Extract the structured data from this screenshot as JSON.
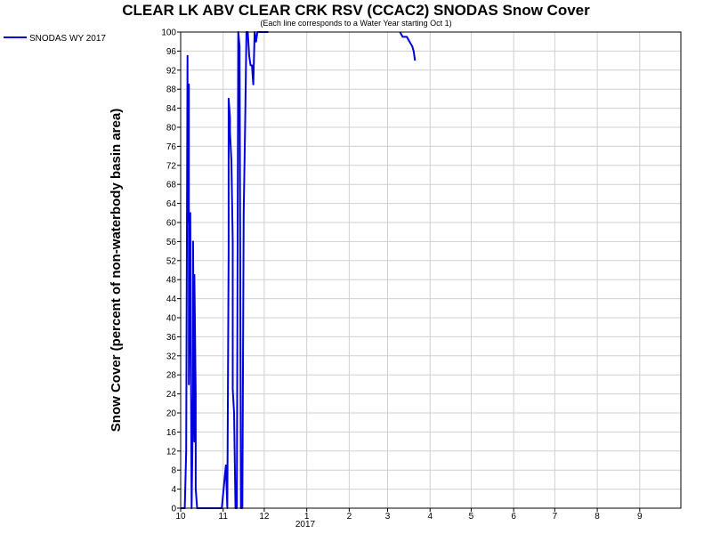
{
  "chart_data": {
    "type": "line",
    "title": "CLEAR LK ABV CLEAR CRK RSV (CCAC2) SNODAS Snow Cover",
    "subtitle": "(Each line corresponds to a Water Year starting Oct 1)",
    "ylabel": "Snow Cover (percent of non-waterbody basin area)",
    "ylim": [
      0,
      100
    ],
    "y_ticks": [
      0,
      4,
      8,
      12,
      16,
      20,
      24,
      28,
      32,
      36,
      40,
      44,
      48,
      52,
      56,
      60,
      64,
      68,
      72,
      76,
      80,
      84,
      88,
      92,
      96,
      100
    ],
    "x_ticks": [
      {
        "label": "10",
        "date": "2016-10-01"
      },
      {
        "label": "11",
        "date": "2016-11-01"
      },
      {
        "label": "12",
        "date": "2016-12-01"
      },
      {
        "label": "1",
        "date": "2017-01-01"
      },
      {
        "label": "2",
        "date": "2017-02-01"
      },
      {
        "label": "3",
        "date": "2017-03-01"
      },
      {
        "label": "4",
        "date": "2017-04-01"
      },
      {
        "label": "5",
        "date": "2017-05-01"
      },
      {
        "label": "6",
        "date": "2017-06-01"
      },
      {
        "label": "7",
        "date": "2017-07-01"
      },
      {
        "label": "8",
        "date": "2017-08-01"
      },
      {
        "label": "9",
        "date": "2017-09-01"
      }
    ],
    "x_year_label": "2017",
    "x_range": [
      "2016-10-01",
      "2017-09-30"
    ],
    "grid": true,
    "legend_position": "top-left",
    "series": [
      {
        "name": "SNODAS WY 2017",
        "color": "#0000dd",
        "segments": [
          {
            "x": [
              "2016-10-01",
              "2016-10-04",
              "2016-10-05",
              "2016-10-06",
              "2016-10-06",
              "2016-10-07",
              "2016-10-07",
              "2016-10-08",
              "2016-10-09",
              "2016-10-10",
              "2016-10-10",
              "2016-10-11",
              "2016-10-11",
              "2016-10-12",
              "2016-10-12",
              "2016-10-13",
              "2016-10-14",
              "2016-10-15",
              "2016-10-18",
              "2016-10-24",
              "2016-10-31",
              "2016-11-03",
              "2016-11-04",
              "2016-11-04",
              "2016-11-05",
              "2016-11-05",
              "2016-11-06",
              "2016-11-06",
              "2016-11-07",
              "2016-11-08",
              "2016-11-08",
              "2016-11-09",
              "2016-11-10",
              "2016-11-11",
              "2016-11-12",
              "2016-11-13",
              "2016-11-14",
              "2016-11-15",
              "2016-11-16",
              "2016-11-17",
              "2016-11-18",
              "2016-11-19",
              "2016-11-20",
              "2016-11-21",
              "2016-11-22",
              "2016-11-23",
              "2016-11-24",
              "2016-11-25",
              "2016-11-26",
              "2016-11-27",
              "2016-11-28",
              "2016-11-29",
              "2016-11-30",
              "2016-11-30",
              "2016-12-01",
              "2016-12-02",
              "2016-12-03",
              "2016-12-04"
            ],
            "y": [
              0,
              0,
              12,
              95,
              60,
              89,
              26,
              62,
              0,
              24,
              56,
              14,
              49,
              24,
              4,
              0,
              0,
              0,
              0,
              0,
              0,
              9,
              0,
              0,
              54,
              86,
              82,
              79,
              73,
              56,
              25,
              20,
              0,
              0,
              100,
              97,
              0,
              0,
              62,
              80,
              100,
              100,
              95,
              93,
              93,
              89,
              100,
              98,
              100,
              100,
              100,
              100,
              100,
              100,
              100,
              100,
              100,
              100
            ]
          },
          {
            "x": [
              "2017-03-10",
              "2017-03-12",
              "2017-03-15",
              "2017-03-17",
              "2017-03-19",
              "2017-03-20",
              "2017-03-21"
            ],
            "y": [
              100,
              99,
              99,
              98,
              97,
              96,
              94
            ]
          }
        ]
      }
    ]
  }
}
